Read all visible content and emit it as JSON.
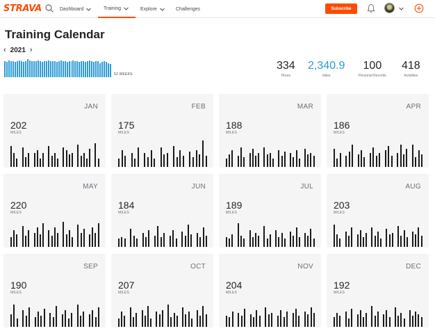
{
  "nav": {
    "logo": "STRAVA",
    "items": [
      {
        "label": "Dashboard"
      },
      {
        "label": "Training"
      },
      {
        "label": "Explore"
      },
      {
        "label": "Challenges"
      }
    ],
    "subscribe_label": "Subscribe",
    "accent": "#fc4c02"
  },
  "page": {
    "title": "Training Calendar",
    "year": "2021",
    "weeks_label": "52 WEEKS",
    "week_bar_color": "#2c9ad6",
    "weekly_levels": [
      0.85,
      0.8,
      0.9,
      0.85,
      0.85,
      0.8,
      0.85,
      0.9,
      0.85,
      0.8,
      0.85,
      0.95,
      0.9,
      0.85,
      0.85,
      0.85,
      0.9,
      0.85,
      0.8,
      0.85,
      0.85,
      0.9,
      0.85,
      0.85,
      0.85,
      0.8,
      0.85,
      0.9,
      0.85,
      0.85,
      0.8,
      0.85,
      0.85,
      0.9,
      0.85,
      0.85,
      0.8,
      0.85,
      0.85,
      0.8,
      0.85,
      0.9,
      0.85,
      0.8,
      0.85,
      0.85,
      0.75,
      0.8,
      0.85,
      0.8,
      0.75,
      0.7
    ]
  },
  "stats": [
    {
      "value": "334",
      "label": "Hours"
    },
    {
      "value": "2,340.9",
      "label": "miles"
    },
    {
      "value": "100",
      "label": "Personal Records"
    },
    {
      "value": "418",
      "label": "Activities"
    }
  ],
  "months": [
    {
      "name": "JAN",
      "miles": "202",
      "unit": "MILES",
      "days": [
        0.75,
        0.5,
        0.3,
        0,
        0.7,
        0.35,
        0.5,
        0,
        0.5,
        0.6,
        0.3,
        0.5,
        0,
        0.75,
        0.4,
        0.5,
        0.3,
        0,
        0.7,
        0.6,
        0.45,
        0.5,
        0,
        0.8,
        0.4,
        0.5,
        0.3,
        0.65,
        0,
        0.85,
        0.3
      ]
    },
    {
      "name": "FEB",
      "miles": "175",
      "unit": "MILES",
      "days": [
        0.3,
        0.6,
        0.4,
        0,
        0.5,
        0.3,
        0.7,
        0,
        0.5,
        0.35,
        0.6,
        0.3,
        0,
        0.7,
        0.45,
        0.5,
        0,
        0.75,
        0.35,
        0.6,
        0.4,
        0,
        0.55,
        0.35,
        0.6,
        0.45,
        0.95,
        0.4
      ]
    },
    {
      "name": "MAR",
      "miles": "188",
      "unit": "MILES",
      "days": [
        0.3,
        0.45,
        0.6,
        0,
        0.4,
        0.7,
        0.35,
        0,
        0.5,
        0.65,
        0.4,
        0.5,
        0,
        0.7,
        0.45,
        0.5,
        0.3,
        0,
        0.6,
        0.4,
        0.55,
        0,
        0.5,
        0.35,
        0.6,
        0.3,
        0,
        0.65,
        0.45,
        0.5,
        0.4
      ]
    },
    {
      "name": "APR",
      "miles": "186",
      "unit": "MILES",
      "days": [
        0.65,
        0.3,
        0.5,
        0,
        0.4,
        0.55,
        0.8,
        0,
        0.45,
        0.6,
        0.35,
        0,
        0.5,
        0.7,
        0.4,
        0.5,
        0,
        0.6,
        0.75,
        0.4,
        0,
        0.5,
        0.8,
        0.45,
        0.65,
        0,
        0.8,
        0.35,
        0.6,
        0.45
      ]
    },
    {
      "name": "MAY",
      "miles": "220",
      "unit": "MILES",
      "days": [
        0.35,
        0.6,
        0.45,
        0,
        0.75,
        0.4,
        0.6,
        0,
        0.5,
        0.7,
        0.45,
        0.85,
        0,
        0.6,
        0.4,
        0.7,
        0.5,
        0,
        0.9,
        0.45,
        0.6,
        0.35,
        0,
        0.8,
        0.5,
        0.65,
        0,
        0.45,
        0.7,
        0.5,
        0.85
      ]
    },
    {
      "name": "JUN",
      "miles": "184",
      "unit": "MILES",
      "days": [
        0.3,
        0.35,
        0.3,
        0,
        0.65,
        0.4,
        0.3,
        0,
        0.5,
        0.35,
        0.6,
        0,
        0.4,
        0.75,
        0.35,
        0.5,
        0,
        0.4,
        0.6,
        0.3,
        0,
        0.55,
        0.4,
        0.8,
        0.45,
        0,
        0.5,
        0.35,
        0.7,
        0.4
      ]
    },
    {
      "name": "JUL",
      "miles": "189",
      "unit": "MILES",
      "days": [
        0.35,
        0.3,
        0.45,
        0,
        0.85,
        0.4,
        0.3,
        0,
        0.6,
        0.35,
        0.5,
        0.4,
        0,
        0.75,
        0.3,
        0.45,
        0,
        0.6,
        0.35,
        0.5,
        0.3,
        0,
        0.55,
        0.4,
        0.7,
        0.35,
        0,
        0.5,
        0.4,
        0.65,
        0.3
      ]
    },
    {
      "name": "AUG",
      "miles": "203",
      "unit": "MILES",
      "days": [
        0.8,
        0.45,
        0.3,
        0,
        0.55,
        0.4,
        0.7,
        0,
        0.45,
        0.6,
        0.35,
        0.5,
        0,
        0.7,
        0.4,
        0.55,
        0.3,
        0,
        0.65,
        0.45,
        0.5,
        0,
        0.75,
        0.4,
        0.6,
        0.35,
        0,
        0.55,
        0.45,
        0.7,
        0.4
      ]
    },
    {
      "name": "SEP",
      "miles": "190",
      "unit": "MILES",
      "days": [
        0.45,
        0.8,
        0.3,
        0,
        0.6,
        0.4,
        0.7,
        0,
        0.35,
        0.55,
        0.4,
        0.65,
        0,
        0.5,
        0.35,
        0.75,
        0,
        0.45,
        0.6,
        0.3,
        0.5,
        0,
        0.8,
        0.4,
        0.55,
        0,
        0.45,
        0.6,
        0.35,
        0.7
      ]
    },
    {
      "name": "OCT",
      "miles": "207",
      "unit": "MILES",
      "days": [
        0.3,
        0.55,
        0.4,
        0,
        0.7,
        0.35,
        0.5,
        0,
        0.6,
        0.4,
        0.75,
        0.3,
        0,
        0.55,
        0.45,
        0.6,
        0,
        0.8,
        0.35,
        0.5,
        0.4,
        0,
        0.7,
        0.45,
        0.55,
        0.3,
        0,
        0.6,
        0.4,
        0.75,
        0.45
      ]
    },
    {
      "name": "NOV",
      "miles": "204",
      "unit": "MILES",
      "days": [
        0.4,
        0.35,
        0.55,
        0,
        0.5,
        0.4,
        0.65,
        0,
        0.45,
        0.35,
        0.6,
        0.4,
        0,
        0.7,
        0.45,
        0.5,
        0,
        0.4,
        0.6,
        0.35,
        0.55,
        0,
        0.5,
        0.65,
        0.4,
        0,
        0.55,
        0.45,
        0.7,
        0.5
      ]
    },
    {
      "name": "DEC",
      "miles": "192",
      "unit": "MILES",
      "days": [
        0.35,
        0.5,
        0.4,
        0,
        0.55,
        0.3,
        0.65,
        0,
        0.45,
        0.6,
        0.35,
        0.5,
        0,
        0.75,
        0.4,
        0.55,
        0,
        0.45,
        0.6,
        0.35,
        0,
        0.7,
        0.4,
        0.5,
        0.3,
        0,
        0.6,
        0.4,
        0.55,
        0.45,
        0.35
      ]
    }
  ]
}
